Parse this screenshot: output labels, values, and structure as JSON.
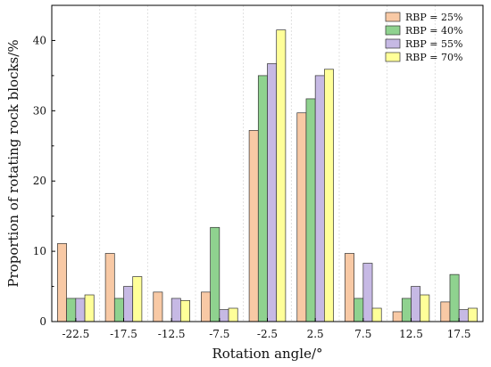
{
  "chart_data": {
    "type": "bar",
    "categories": [
      "-22.5",
      "-17.5",
      "-12.5",
      "-7.5",
      "-2.5",
      "2.5",
      "7.5",
      "12.5",
      "17.5"
    ],
    "series": [
      {
        "name": "RBP = 25%",
        "color": "#f8c9a5",
        "values": [
          11.1,
          9.7,
          4.2,
          4.2,
          27.2,
          29.7,
          9.7,
          1.4,
          2.8
        ]
      },
      {
        "name": "RBP = 40%",
        "color": "#8fd28f",
        "values": [
          3.3,
          3.3,
          0.0,
          13.4,
          35.0,
          31.7,
          3.3,
          3.3,
          6.7
        ]
      },
      {
        "name": "RBP = 55%",
        "color": "#c6b9e4",
        "values": [
          3.3,
          5.0,
          3.3,
          1.7,
          36.7,
          35.0,
          8.3,
          5.0,
          1.7
        ]
      },
      {
        "name": "RBP = 70%",
        "color": "#ffff99",
        "values": [
          3.8,
          6.4,
          3.0,
          1.9,
          41.5,
          35.9,
          1.9,
          3.8,
          1.9
        ]
      }
    ],
    "xlabel": "Rotation angle/°",
    "ylabel": "Proportion of rotating rock blocks/%",
    "ylim": [
      0,
      45
    ],
    "yticks": [
      0,
      10,
      20,
      30,
      40
    ],
    "grid": "vertical dashed",
    "legend_position": "top-right"
  }
}
